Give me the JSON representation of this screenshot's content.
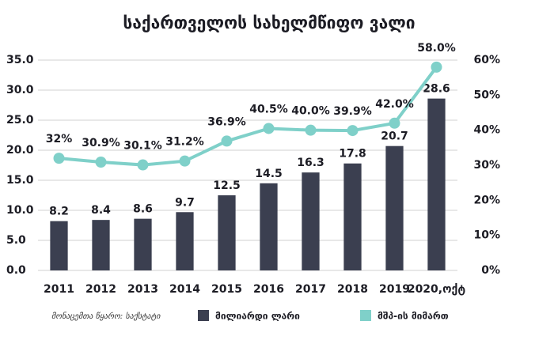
{
  "chart_data": {
    "type": "bar",
    "title": "საქართველოს სახელმწიფო ვალი",
    "source": "მონაცემთა წყარო: საქსტატი",
    "categories": [
      "2011",
      "2012",
      "2013",
      "2014",
      "2015",
      "2016",
      "2017",
      "2018",
      "2019",
      "2020,ოქტ"
    ],
    "series": [
      {
        "name": "მილიარდი ლარი",
        "type": "bar",
        "color": "#3b3f50",
        "values": [
          8.2,
          8.4,
          8.6,
          9.7,
          12.5,
          14.5,
          16.3,
          17.8,
          20.7,
          28.6
        ]
      },
      {
        "name": "მშპ-ის მიმართ",
        "type": "line",
        "axis": "y2",
        "color": "#7fd0c9",
        "values": [
          32,
          30.9,
          30.1,
          31.2,
          36.9,
          40.5,
          40.0,
          39.9,
          42.0,
          58.0
        ],
        "value_labels": [
          "32%",
          "30.9%",
          "30.1%",
          "31.2%",
          "36.9%",
          "40.5%",
          "40.0%",
          "39.9%",
          "42.0%",
          "58.0%"
        ]
      }
    ],
    "ylim": [
      0,
      35
    ],
    "yticks": [
      {
        "value": 0,
        "label": "0.0"
      },
      {
        "value": 5,
        "label": "5.0"
      },
      {
        "value": 10,
        "label": "10.0"
      },
      {
        "value": 15,
        "label": "15.0"
      },
      {
        "value": 20,
        "label": "20.0"
      },
      {
        "value": 25,
        "label": "25.0"
      },
      {
        "value": 30,
        "label": "30.0"
      },
      {
        "value": 35,
        "label": "35.0"
      }
    ],
    "y2lim": [
      0,
      60
    ],
    "y2ticks": [
      {
        "value": 0,
        "label": "0%"
      },
      {
        "value": 10,
        "label": "10%"
      },
      {
        "value": 20,
        "label": "20%"
      },
      {
        "value": 30,
        "label": "30%"
      },
      {
        "value": 40,
        "label": "40%"
      },
      {
        "value": 50,
        "label": "50%"
      },
      {
        "value": 60,
        "label": "60%"
      }
    ],
    "grid": true
  }
}
